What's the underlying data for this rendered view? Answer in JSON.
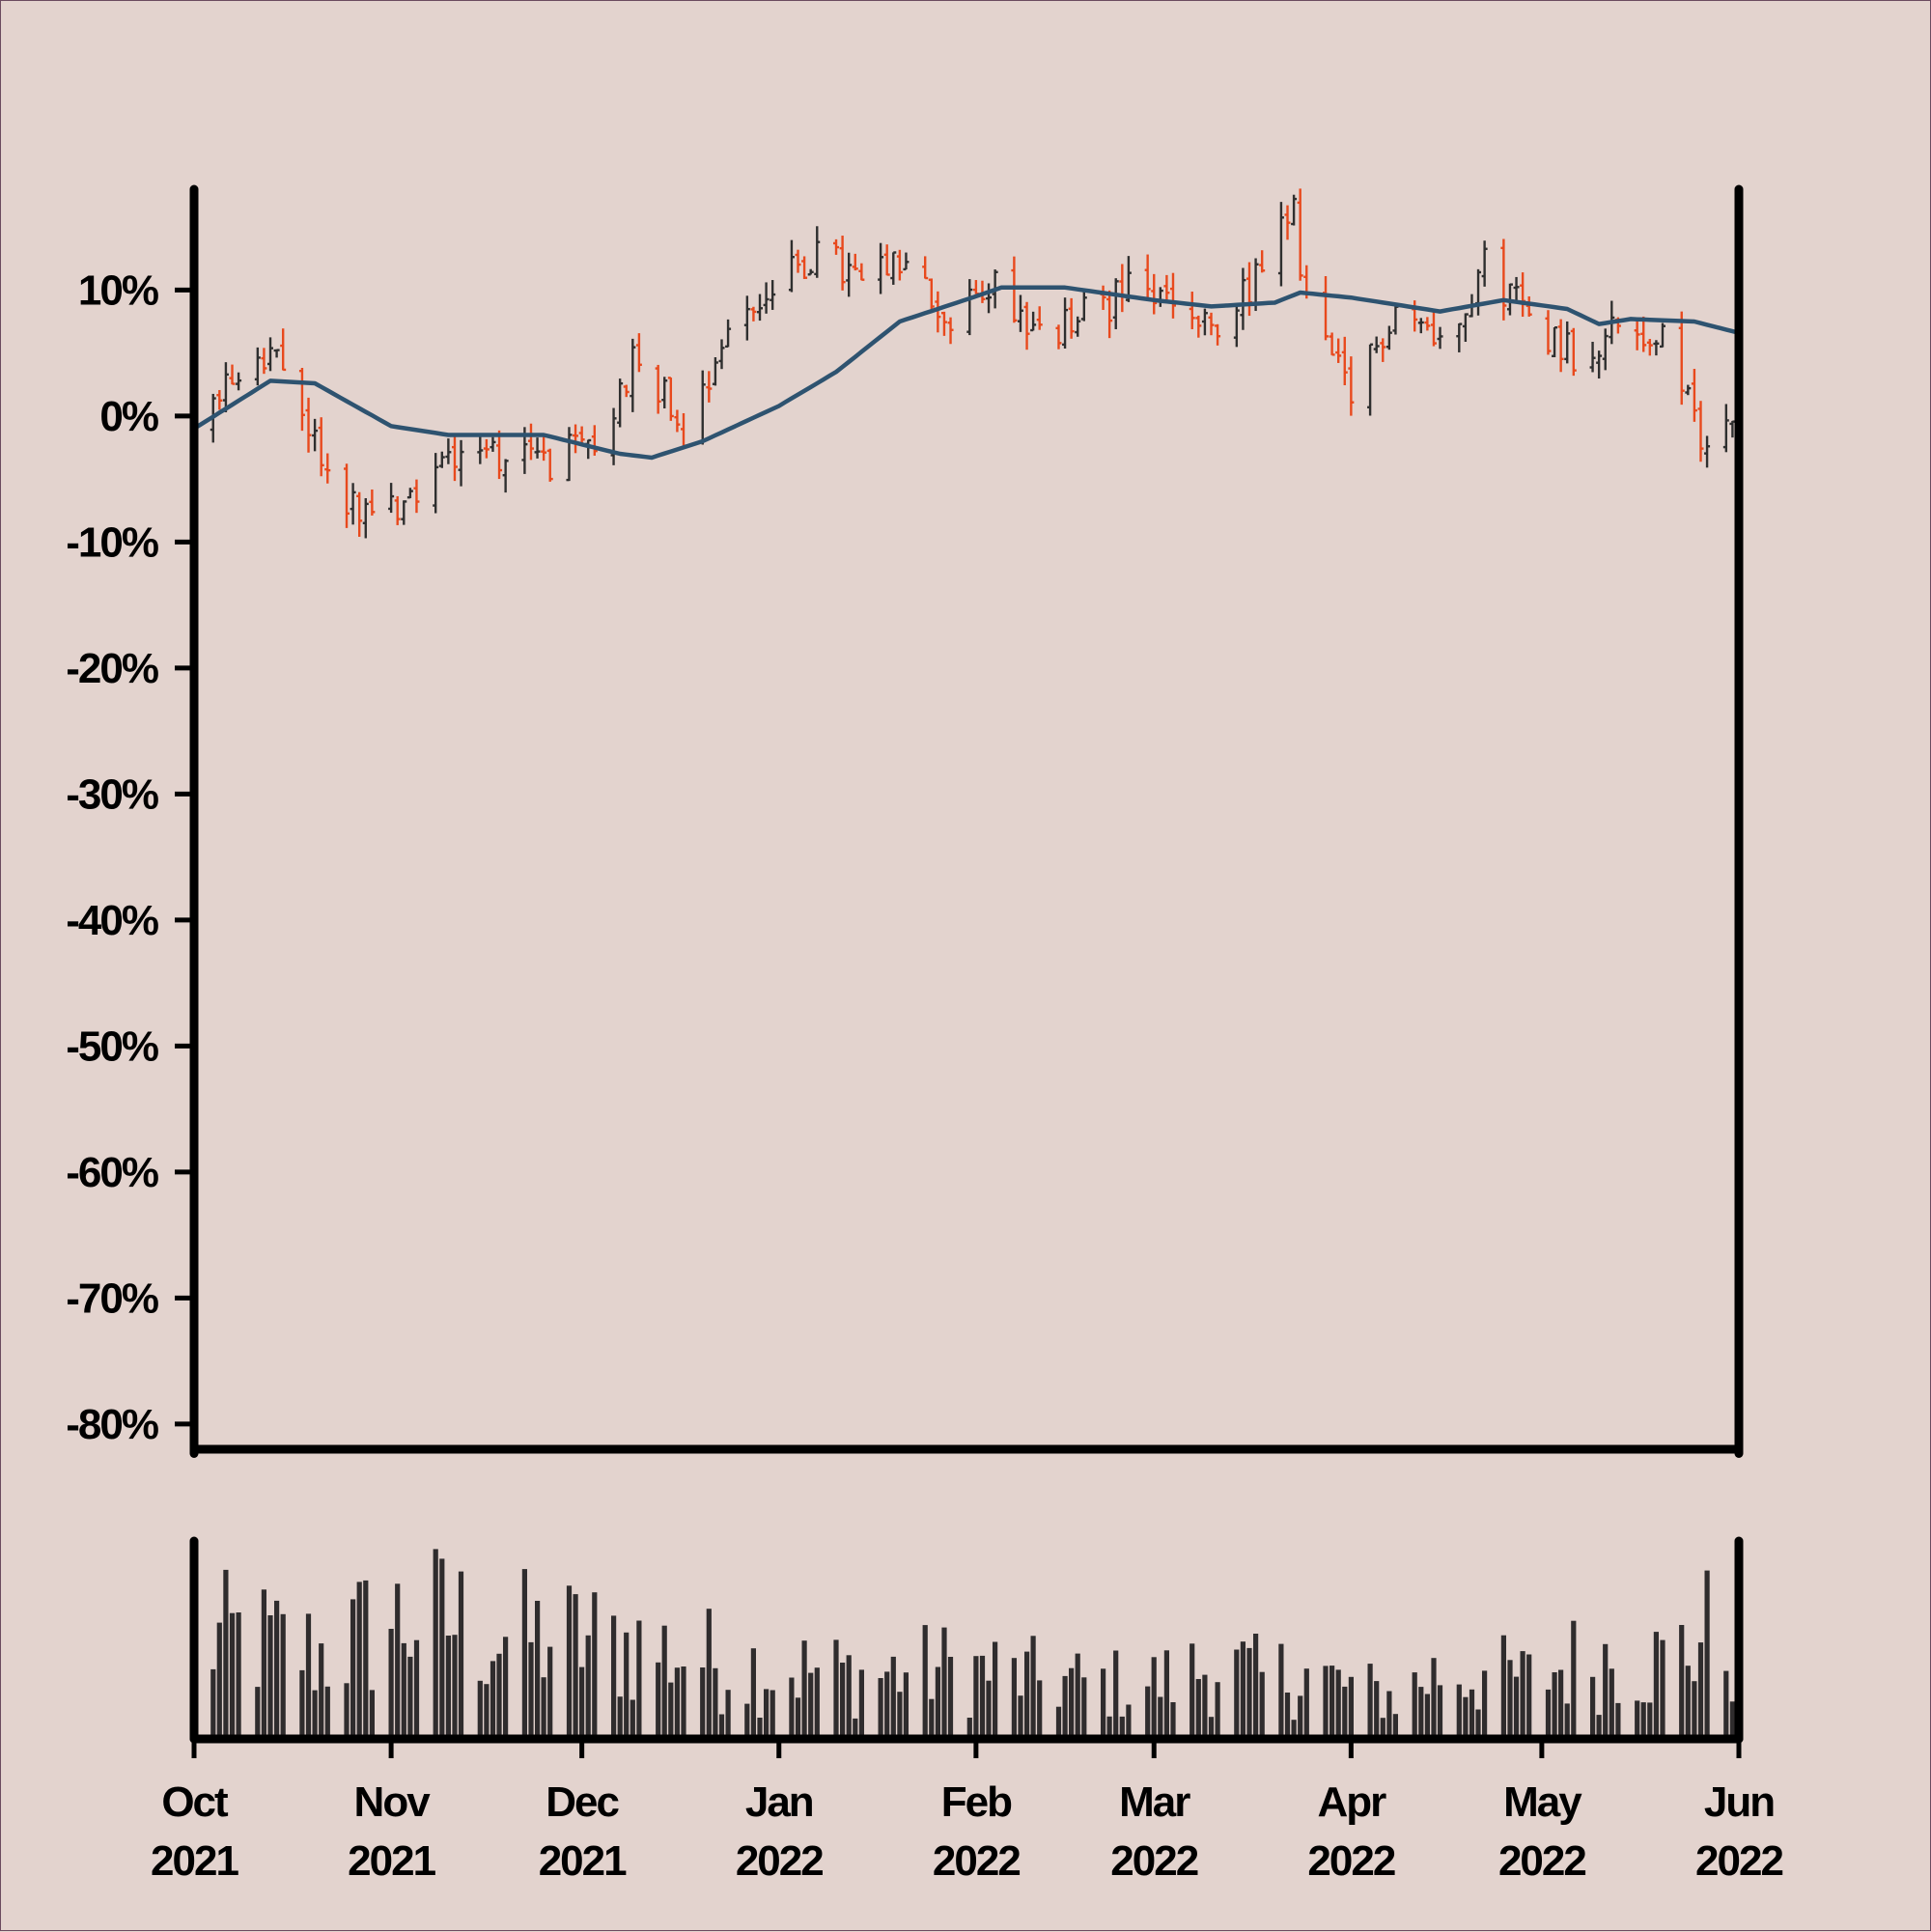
{
  "chart_data": [
    {
      "type": "ohlc",
      "title": "",
      "xlabel": "",
      "ylabel": "",
      "y_format": "percent",
      "ylim": [
        -82,
        18
      ],
      "y_ticks": [
        10,
        0,
        -10,
        -20,
        -30,
        -40,
        -50,
        -60,
        -70,
        -80
      ],
      "y_tick_labels": [
        "10%",
        "0%",
        "-10%",
        "-20%",
        "-30%",
        "-40%",
        "-50%",
        "-60%",
        "-70%",
        "-80%"
      ],
      "xlim": [
        "2021-10-01",
        "2022-06-01"
      ],
      "x_ticks": [
        "2021-10-01",
        "2021-11-01",
        "2021-12-01",
        "2022-01-01",
        "2022-02-01",
        "2022-03-01",
        "2022-04-01",
        "2022-05-01",
        "2022-06-01"
      ],
      "x_tick_labels": [
        [
          "Oct",
          "2021"
        ],
        [
          "Nov",
          "2021"
        ],
        [
          "Dec",
          "2021"
        ],
        [
          "Jan",
          "2022"
        ],
        [
          "Feb",
          "2022"
        ],
        [
          "Mar",
          "2022"
        ],
        [
          "Apr",
          "2022"
        ],
        [
          "May",
          "2022"
        ],
        [
          "Jun",
          "2022"
        ]
      ],
      "grid": false,
      "colors": {
        "up": "#2f2f2f",
        "down": "#e8491d",
        "moving_average": "#2e5370"
      },
      "close_percent_weekly": [
        {
          "date": "2021-10-01",
          "close": -1.0
        },
        {
          "date": "2021-10-08",
          "close": 4.0
        },
        {
          "date": "2021-10-15",
          "close": 4.0
        },
        {
          "date": "2021-10-22",
          "close": -4.5
        },
        {
          "date": "2021-10-29",
          "close": -8.5
        },
        {
          "date": "2021-11-05",
          "close": -6.0
        },
        {
          "date": "2021-11-12",
          "close": -2.0
        },
        {
          "date": "2021-11-19",
          "close": -3.0
        },
        {
          "date": "2021-11-26",
          "close": -3.5
        },
        {
          "date": "2021-12-03",
          "close": -2.5
        },
        {
          "date": "2021-12-10",
          "close": 5.5
        },
        {
          "date": "2021-12-17",
          "close": -1.0
        },
        {
          "date": "2021-12-24",
          "close": 7.0
        },
        {
          "date": "2021-12-31",
          "close": 10.0
        },
        {
          "date": "2022-01-07",
          "close": 13.0
        },
        {
          "date": "2022-01-14",
          "close": 10.5
        },
        {
          "date": "2022-01-21",
          "close": 12.0
        },
        {
          "date": "2022-01-28",
          "close": 7.0
        },
        {
          "date": "2022-02-04",
          "close": 11.0
        },
        {
          "date": "2022-02-11",
          "close": 6.0
        },
        {
          "date": "2022-02-18",
          "close": 8.0
        },
        {
          "date": "2022-02-25",
          "close": 10.0
        },
        {
          "date": "2022-03-04",
          "close": 9.0
        },
        {
          "date": "2022-03-11",
          "close": 6.0
        },
        {
          "date": "2022-03-18",
          "close": 12.0
        },
        {
          "date": "2022-03-23",
          "close": 16.0
        },
        {
          "date": "2022-03-25",
          "close": 9.0
        },
        {
          "date": "2022-04-01",
          "close": 1.0
        },
        {
          "date": "2022-04-08",
          "close": 9.0
        },
        {
          "date": "2022-04-15",
          "close": 6.0
        },
        {
          "date": "2022-04-22",
          "close": 12.0
        },
        {
          "date": "2022-04-29",
          "close": 8.0
        },
        {
          "date": "2022-05-06",
          "close": 5.0
        },
        {
          "date": "2022-05-13",
          "close": 7.0
        },
        {
          "date": "2022-05-20",
          "close": 6.0
        },
        {
          "date": "2022-05-27",
          "close": -3.0
        },
        {
          "date": "2022-06-01",
          "close": 1.0
        }
      ],
      "moving_average_percent": [
        {
          "date": "2021-10-01",
          "value": -1.0
        },
        {
          "date": "2021-10-13",
          "value": 2.8
        },
        {
          "date": "2021-10-20",
          "value": 2.6
        },
        {
          "date": "2021-11-01",
          "value": -0.8
        },
        {
          "date": "2021-11-10",
          "value": -1.5
        },
        {
          "date": "2021-11-25",
          "value": -1.5
        },
        {
          "date": "2021-12-07",
          "value": -3.0
        },
        {
          "date": "2021-12-12",
          "value": -3.3
        },
        {
          "date": "2021-12-20",
          "value": -2.0
        },
        {
          "date": "2022-01-01",
          "value": 0.8
        },
        {
          "date": "2022-01-10",
          "value": 3.5
        },
        {
          "date": "2022-01-20",
          "value": 7.5
        },
        {
          "date": "2022-02-01",
          "value": 9.5
        },
        {
          "date": "2022-02-05",
          "value": 10.2
        },
        {
          "date": "2022-02-15",
          "value": 10.2
        },
        {
          "date": "2022-03-01",
          "value": 9.2
        },
        {
          "date": "2022-03-10",
          "value": 8.7
        },
        {
          "date": "2022-03-20",
          "value": 9.0
        },
        {
          "date": "2022-03-24",
          "value": 9.8
        },
        {
          "date": "2022-04-01",
          "value": 9.4
        },
        {
          "date": "2022-04-15",
          "value": 8.3
        },
        {
          "date": "2022-04-25",
          "value": 9.2
        },
        {
          "date": "2022-05-05",
          "value": 8.5
        },
        {
          "date": "2022-05-10",
          "value": 7.3
        },
        {
          "date": "2022-05-15",
          "value": 7.7
        },
        {
          "date": "2022-05-25",
          "value": 7.5
        },
        {
          "date": "2022-06-01",
          "value": 6.6
        }
      ]
    },
    {
      "type": "bar",
      "title": "",
      "xlabel": "",
      "ylabel": "",
      "xlim": [
        "2021-10-01",
        "2022-06-01"
      ],
      "y_ticks": [],
      "grid": false,
      "color": "#2f2c2d",
      "volume_relative_weekly": [
        {
          "date": "2021-10-01",
          "value": 0.55
        },
        {
          "date": "2021-10-08",
          "value": 0.6
        },
        {
          "date": "2021-10-15",
          "value": 0.55
        },
        {
          "date": "2021-10-22",
          "value": 0.5
        },
        {
          "date": "2021-10-29",
          "value": 0.65
        },
        {
          "date": "2021-11-05",
          "value": 0.72
        },
        {
          "date": "2021-11-12",
          "value": 0.68
        },
        {
          "date": "2021-11-19",
          "value": 0.6
        },
        {
          "date": "2021-11-26",
          "value": 0.6
        },
        {
          "date": "2021-12-03",
          "value": 0.58
        },
        {
          "date": "2021-12-10",
          "value": 0.55
        },
        {
          "date": "2021-12-17",
          "value": 0.5
        },
        {
          "date": "2021-12-24",
          "value": 0.45
        },
        {
          "date": "2021-12-31",
          "value": 0.42
        },
        {
          "date": "2022-01-07",
          "value": 0.4
        },
        {
          "date": "2022-01-14",
          "value": 0.38
        },
        {
          "date": "2022-01-21",
          "value": 0.4
        },
        {
          "date": "2022-01-28",
          "value": 0.42
        },
        {
          "date": "2022-02-04",
          "value": 0.4
        },
        {
          "date": "2022-02-11",
          "value": 0.35
        },
        {
          "date": "2022-02-18",
          "value": 0.33
        },
        {
          "date": "2022-02-25",
          "value": 0.32
        },
        {
          "date": "2022-03-04",
          "value": 0.35
        },
        {
          "date": "2022-03-11",
          "value": 0.45
        },
        {
          "date": "2022-03-18",
          "value": 0.35
        },
        {
          "date": "2022-03-25",
          "value": 0.4
        },
        {
          "date": "2022-04-01",
          "value": 0.3
        },
        {
          "date": "2022-04-08",
          "value": 0.25
        },
        {
          "date": "2022-04-15",
          "value": 0.4
        },
        {
          "date": "2022-04-22",
          "value": 0.38
        },
        {
          "date": "2022-04-29",
          "value": 0.35
        },
        {
          "date": "2022-05-06",
          "value": 0.45
        },
        {
          "date": "2022-05-13",
          "value": 0.5
        },
        {
          "date": "2022-05-20",
          "value": 0.45
        },
        {
          "date": "2022-05-27",
          "value": 0.62
        },
        {
          "date": "2022-06-01",
          "value": 0.5
        }
      ]
    }
  ]
}
